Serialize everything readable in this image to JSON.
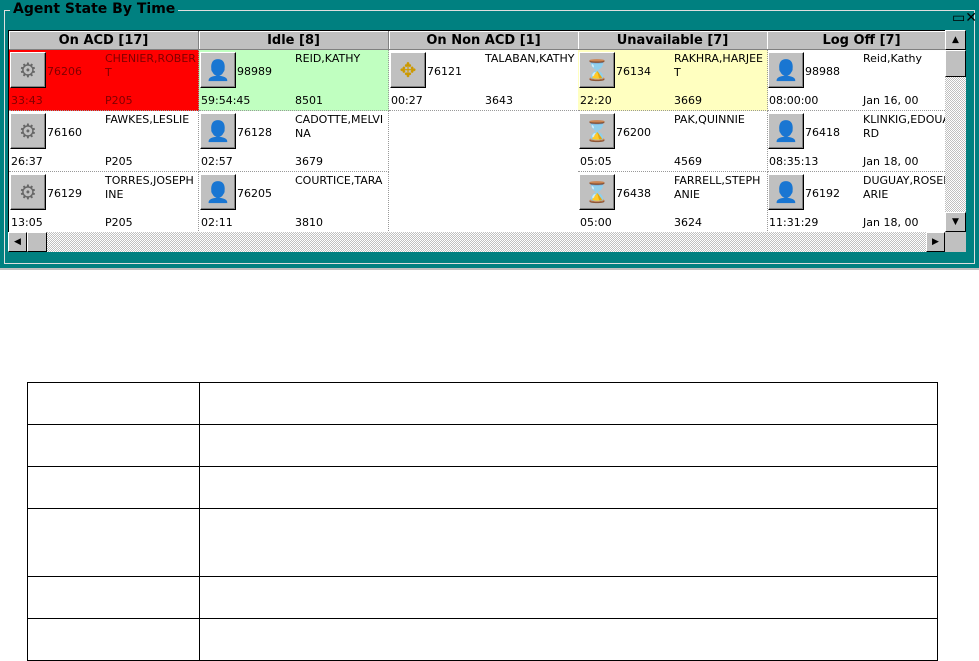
{
  "panel": {
    "title": "Agent State By Time",
    "close_icon": "restore-close-icon"
  },
  "colors": {
    "teal": "#008080",
    "on_acd_alert": "#ff0000",
    "idle_highlight": "#c0ffc0",
    "unavailable_highlight": "#ffffc0"
  },
  "columns": [
    {
      "label": "On ACD [17]",
      "icon": "phone-gears-icon",
      "cells": [
        {
          "id": "76206",
          "name": "CHENIER,ROBERT",
          "time": "33:43",
          "code": "P205",
          "bg": "#ff0000",
          "fg": "#800000"
        },
        {
          "id": "76160",
          "name": "FAWKES,LESLIE",
          "time": "26:37",
          "code": "P205"
        },
        {
          "id": "76129",
          "name": "TORRES,JOSEPHINE",
          "time": "13:05",
          "code": "P205"
        }
      ]
    },
    {
      "label": "Idle [8]",
      "icon": "green-person-icon",
      "cells": [
        {
          "id": "98989",
          "name": "REID,KATHY",
          "time": "59:54:45",
          "code": "8501",
          "bg": "#c0ffc0"
        },
        {
          "id": "76128",
          "name": "CADOTTE,MELVINA",
          "time": "02:57",
          "code": "3679"
        },
        {
          "id": "76205",
          "name": "COURTICE,TARA",
          "time": "02:11",
          "code": "3810"
        }
      ]
    },
    {
      "label": "On Non ACD [1]",
      "icon": "phone-arrows-icon",
      "cells": [
        {
          "id": "76121",
          "name": "TALABAN,KATHY",
          "time": "00:27",
          "code": "3643"
        }
      ]
    },
    {
      "label": "Unavailable [7]",
      "icon": "person-hourglass-icon",
      "cells": [
        {
          "id": "76134",
          "name": "RAKHRA,HARJEET",
          "time": "22:20",
          "code": "3669",
          "bg": "#ffffc0"
        },
        {
          "id": "76200",
          "name": "PAK,QUINNIE",
          "time": "05:05",
          "code": "4569"
        },
        {
          "id": "76438",
          "name": "FARRELL,STEPHANIE",
          "time": "05:00",
          "code": "3624"
        }
      ]
    },
    {
      "label": "Log Off [7]",
      "icon": "gray-person-icon",
      "cells": [
        {
          "id": "98988",
          "name": "Reid,Kathy",
          "time": "08:00:00",
          "code": "Jan 16, 00"
        },
        {
          "id": "76418",
          "name": "KLINKIG,EDOUARD",
          "time": "08:35:13",
          "code": "Jan 18, 00"
        },
        {
          "id": "76192",
          "name": "DUGUAY,ROSEMARIE",
          "time": "11:31:29",
          "code": "Jan 18, 00"
        }
      ]
    }
  ]
}
